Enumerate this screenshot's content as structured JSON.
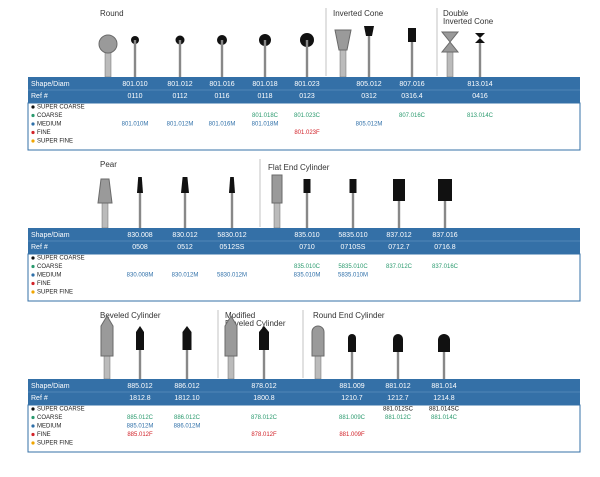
{
  "sections": [
    {
      "groups": [
        [
          "Round"
        ],
        [
          "Inverted Cone"
        ],
        [
          "Double",
          "Inverted Cone"
        ]
      ],
      "row_labels": [
        "Shape/Diam",
        "Ref #"
      ],
      "legend": {
        "super_coarse": "SUPER COARSE",
        "coarse": "COARSE",
        "medium": "MEDIUM",
        "fine": "FINE",
        "super_fine": "SUPER FINE"
      },
      "columns": [
        {
          "shape": "801.010",
          "ref": "0110",
          "codes": {
            "medium": "801.010M"
          }
        },
        {
          "shape": "801.012",
          "ref": "0112",
          "codes": {
            "medium": "801.012M"
          }
        },
        {
          "shape": "801.016",
          "ref": "0116",
          "codes": {
            "medium": "801.016M"
          }
        },
        {
          "shape": "801.018",
          "ref": "0118",
          "codes": {
            "coarse": "801.018C",
            "medium": "801.018M"
          }
        },
        {
          "shape": "801.023",
          "ref": "0123",
          "codes": {
            "coarse": "801.023C",
            "fine": "801.023F"
          }
        },
        {
          "shape": "805.012",
          "ref": "0312",
          "codes": {
            "medium": "805.012M"
          }
        },
        {
          "shape": "807.016",
          "ref": "0316.4",
          "codes": {
            "coarse": "807.016C"
          }
        },
        {
          "shape": "813.014",
          "ref": "0416",
          "codes": {
            "coarse": "813.014C"
          }
        }
      ]
    },
    {
      "groups": [
        [
          "Pear"
        ],
        [
          "Flat End Cylinder"
        ]
      ],
      "row_labels": [
        "Shape/Diam",
        "Ref #"
      ],
      "legend": {
        "super_coarse": "SUPER COARSE",
        "coarse": "COARSE",
        "medium": "MEDIUM",
        "fine": "FINE",
        "super_fine": "SUPER FINE"
      },
      "columns": [
        {
          "shape": "830.008",
          "ref": "0508",
          "codes": {
            "medium": "830.008M"
          }
        },
        {
          "shape": "830.012",
          "ref": "0512",
          "codes": {
            "medium": "830.012M"
          }
        },
        {
          "shape": "5830.012",
          "ref": "0512SS",
          "codes": {
            "medium": "5830.012M"
          }
        },
        {
          "shape": "835.010",
          "ref": "0710",
          "codes": {
            "coarse": "835.010C",
            "medium": "835.010M"
          }
        },
        {
          "shape": "5835.010",
          "ref": "0710SS",
          "codes": {
            "coarse": "5835.010C",
            "medium": "5835.010M"
          }
        },
        {
          "shape": "837.012",
          "ref": "0712.7",
          "codes": {
            "coarse": "837.012C"
          }
        },
        {
          "shape": "837.016",
          "ref": "0716.8",
          "codes": {
            "coarse": "837.016C"
          }
        }
      ]
    },
    {
      "groups": [
        [
          "Beveled Cylinder"
        ],
        [
          "Modified",
          "Beveled Cylinder"
        ],
        [
          "Round End Cylinder"
        ]
      ],
      "row_labels": [
        "Shape/Diam",
        "Ref #"
      ],
      "legend": {
        "super_coarse": "SUPER COARSE",
        "coarse": "COARSE",
        "medium": "MEDIUM",
        "fine": "FINE",
        "super_fine": "SUPER FINE"
      },
      "columns": [
        {
          "shape": "885.012",
          "ref": "1812.8",
          "codes": {
            "coarse": "885.012C",
            "medium": "885.012M",
            "fine": "885.012F"
          }
        },
        {
          "shape": "886.012",
          "ref": "1812.10",
          "codes": {
            "coarse": "886.012C",
            "medium": "886.012M"
          }
        },
        {
          "shape": "878.012",
          "ref": "1800.8",
          "codes": {
            "coarse": "878.012C",
            "fine": "878.012F"
          }
        },
        {
          "shape": "881.009",
          "ref": "1210.7",
          "codes": {
            "coarse": "881.009C",
            "fine": "881.009F"
          }
        },
        {
          "shape": "881.012",
          "ref": "1212.7",
          "codes": {
            "super_coarse": "881.012SC",
            "coarse": "881.012C"
          }
        },
        {
          "shape": "881.014",
          "ref": "1214.8",
          "codes": {
            "super_coarse": "881.014SC",
            "coarse": "881.014C"
          }
        }
      ]
    }
  ]
}
